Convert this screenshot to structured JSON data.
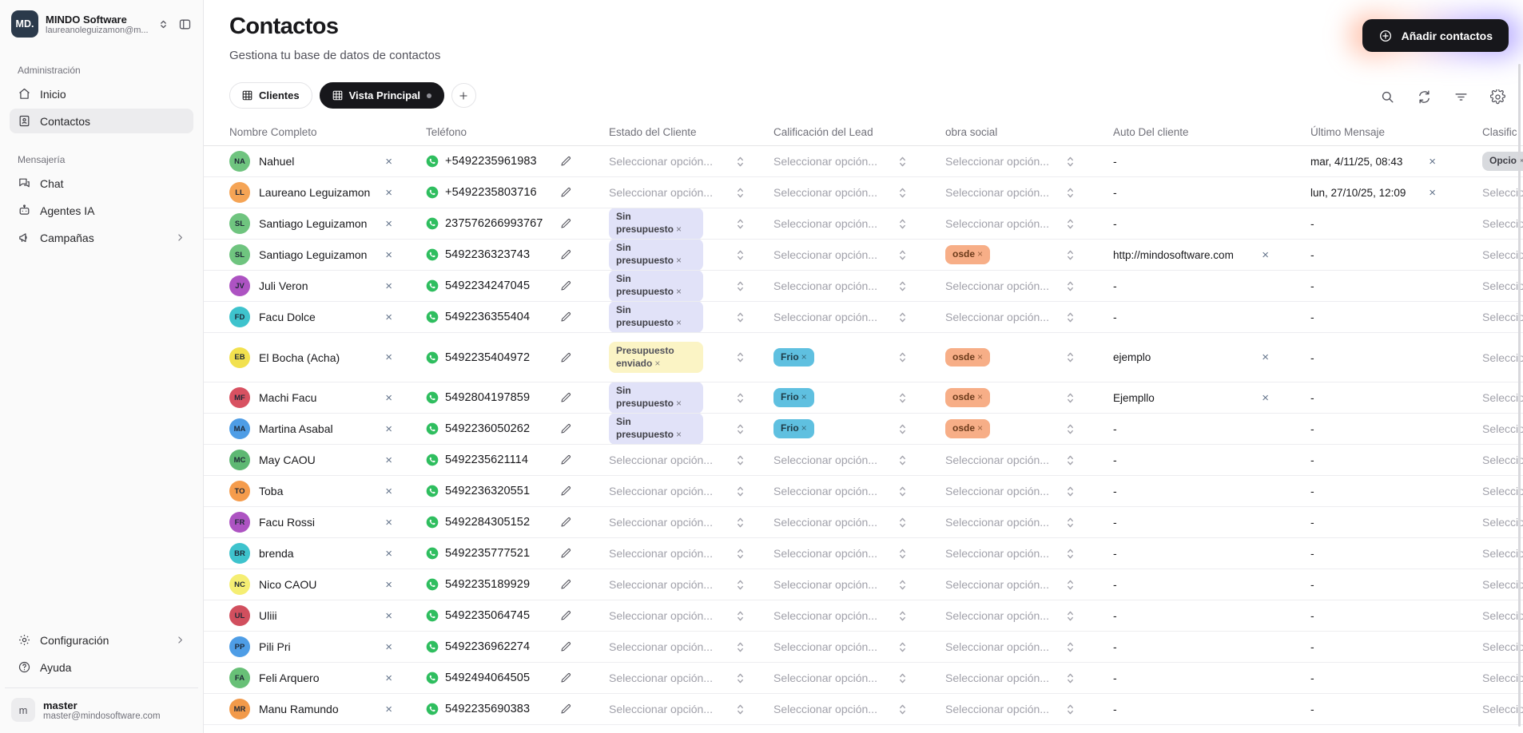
{
  "sidebar": {
    "workspace": {
      "logo": "MD.",
      "name": "MINDO Software",
      "email": "laureanoleguizamon@m..."
    },
    "sections": [
      {
        "label": "Administración",
        "items": [
          {
            "icon": "home-icon",
            "label": "Inicio",
            "active": false,
            "chevron": false
          },
          {
            "icon": "contacts-icon",
            "label": "Contactos",
            "active": true,
            "chevron": false
          }
        ]
      },
      {
        "label": "Mensajería",
        "items": [
          {
            "icon": "chat-icon",
            "label": "Chat",
            "active": false,
            "chevron": false
          },
          {
            "icon": "bot-icon",
            "label": "Agentes IA",
            "active": false,
            "chevron": false
          },
          {
            "icon": "megaphone-icon",
            "label": "Campañas",
            "active": false,
            "chevron": true
          }
        ]
      }
    ],
    "footer_items": [
      {
        "icon": "gear-icon",
        "label": "Configuración",
        "active": false,
        "chevron": true
      },
      {
        "icon": "help-icon",
        "label": "Ayuda",
        "active": false,
        "chevron": false
      }
    ],
    "account": {
      "avatar": "m",
      "name": "master",
      "email": "master@mindosoftware.com"
    }
  },
  "header": {
    "title": "Contactos",
    "subtitle": "Gestiona tu base de datos de contactos",
    "add_button": "Añadir contactos"
  },
  "tabs": [
    {
      "label": "Clientes",
      "active": false,
      "dot": false
    },
    {
      "label": "Vista Principal",
      "active": true,
      "dot": true
    }
  ],
  "toolbar_icons": [
    "search-icon",
    "refresh-icon",
    "filter-icon",
    "settings-icon"
  ],
  "table": {
    "columns": [
      "Nombre Completo",
      "Teléfono",
      "Estado del Cliente",
      "Calificación del Lead",
      "obra social",
      "Auto Del cliente",
      "Último Mensaje",
      "Clasific"
    ],
    "select_placeholder": "Seleccionar opción...",
    "empty_value": "-",
    "badges": {
      "sin_presupuesto": {
        "label": "Sin presupuesto",
        "bg": "#e1e2f8",
        "color": "#3f3f46"
      },
      "presupuesto_enviado": {
        "label": "Presupuesto enviado",
        "bg": "#fbf4c5",
        "color": "#52525b"
      },
      "frio": {
        "label": "Frio",
        "bg": "#5fc0e0",
        "color": "#1e3a45"
      },
      "osde": {
        "label": "osde",
        "bg": "#f7ae87",
        "color": "#6b3a1a"
      },
      "opcio": {
        "label": "Opcio",
        "bg": "#d8dade",
        "color": "#3f3f46"
      }
    },
    "rows": [
      {
        "initials": "NA",
        "color": "#6fc47f",
        "name": "Nahuel",
        "phone": "+5492235961983",
        "estado": null,
        "calificacion": null,
        "obra": null,
        "auto": null,
        "ultimo": {
          "text": "mar, 4/11/25, 08:43",
          "removable": true
        },
        "clasific": "badge",
        "tall": false
      },
      {
        "initials": "LL",
        "color": "#f5a455",
        "name": "Laureano Leguizamon",
        "phone": "+5492235803716",
        "estado": null,
        "calificacion": null,
        "obra": null,
        "auto": null,
        "ultimo": {
          "text": "lun, 27/10/25, 12:09",
          "removable": true
        },
        "clasific": "select",
        "tall": false
      },
      {
        "initials": "SL",
        "color": "#6fc47f",
        "name": "Santiago Leguizamon",
        "phone": "237576266993767",
        "estado": "sin_presupuesto",
        "calificacion": null,
        "obra": null,
        "auto": null,
        "ultimo": null,
        "clasific": "select",
        "tall": false
      },
      {
        "initials": "SL",
        "color": "#6fc47f",
        "name": "Santiago Leguizamon",
        "phone": "5492236323743",
        "estado": "sin_presupuesto",
        "calificacion": null,
        "obra": "osde",
        "auto": {
          "text": "http://mindosoftware.com",
          "removable": true
        },
        "ultimo": null,
        "clasific": "select",
        "tall": false
      },
      {
        "initials": "JV",
        "color": "#ad53c2",
        "name": "Juli Veron",
        "phone": "5492234247045",
        "estado": "sin_presupuesto",
        "calificacion": null,
        "obra": null,
        "auto": null,
        "ultimo": null,
        "clasific": "select",
        "tall": false
      },
      {
        "initials": "FD",
        "color": "#3ec3cd",
        "name": "Facu Dolce",
        "phone": "5492236355404",
        "estado": "sin_presupuesto",
        "calificacion": null,
        "obra": null,
        "auto": null,
        "ultimo": null,
        "clasific": "select",
        "tall": false
      },
      {
        "initials": "EB",
        "color": "#f2e14e",
        "name": "El Bocha (Acha)",
        "phone": "5492235404972",
        "estado": "presupuesto_enviado",
        "calificacion": "frio",
        "obra": "osde",
        "auto": {
          "text": "ejemplo",
          "removable": true
        },
        "ultimo": null,
        "clasific": "select",
        "tall": true
      },
      {
        "initials": "MF",
        "color": "#d85161",
        "name": "Machi Facu",
        "phone": "5492804197859",
        "estado": "sin_presupuesto",
        "calificacion": "frio",
        "obra": "osde",
        "auto": {
          "text": "Ejempllo",
          "removable": true
        },
        "ultimo": null,
        "clasific": "select",
        "tall": false
      },
      {
        "initials": "MA",
        "color": "#4e9de6",
        "name": "Martina Asabal",
        "phone": "5492236050262",
        "estado": "sin_presupuesto",
        "calificacion": "frio",
        "obra": "osde",
        "auto": null,
        "ultimo": null,
        "clasific": "select",
        "tall": false
      },
      {
        "initials": "MC",
        "color": "#5eb873",
        "name": "May CAOU",
        "phone": "5492235621114",
        "estado": null,
        "calificacion": null,
        "obra": null,
        "auto": null,
        "ultimo": null,
        "clasific": "select",
        "tall": false
      },
      {
        "initials": "TO",
        "color": "#f59c4c",
        "name": "Toba",
        "phone": "5492236320551",
        "estado": null,
        "calificacion": null,
        "obra": null,
        "auto": null,
        "ultimo": null,
        "clasific": "select",
        "tall": false
      },
      {
        "initials": "FR",
        "color": "#ad53c2",
        "name": "Facu Rossi",
        "phone": "5492284305152",
        "estado": null,
        "calificacion": null,
        "obra": null,
        "auto": null,
        "ultimo": null,
        "clasific": "select",
        "tall": false
      },
      {
        "initials": "BR",
        "color": "#3ec3cd",
        "name": "brenda",
        "phone": "5492235777521",
        "estado": null,
        "calificacion": null,
        "obra": null,
        "auto": null,
        "ultimo": null,
        "clasific": "select",
        "tall": false
      },
      {
        "initials": "NC",
        "color": "#f5ee73",
        "name": "Nico CAOU",
        "phone": "5492235189929",
        "estado": null,
        "calificacion": null,
        "obra": null,
        "auto": null,
        "ultimo": null,
        "clasific": "select",
        "tall": false
      },
      {
        "initials": "UL",
        "color": "#d14f5e",
        "name": "Uliii",
        "phone": "5492235064745",
        "estado": null,
        "calificacion": null,
        "obra": null,
        "auto": null,
        "ultimo": null,
        "clasific": "select",
        "tall": false
      },
      {
        "initials": "PP",
        "color": "#4e9de6",
        "name": "Pili Pri",
        "phone": "5492236962274",
        "estado": null,
        "calificacion": null,
        "obra": null,
        "auto": null,
        "ultimo": null,
        "clasific": "select",
        "tall": false
      },
      {
        "initials": "FA",
        "color": "#68c077",
        "name": "Feli Arquero",
        "phone": "5492494064505",
        "estado": null,
        "calificacion": null,
        "obra": null,
        "auto": null,
        "ultimo": null,
        "clasific": "select",
        "tall": false
      },
      {
        "initials": "MR",
        "color": "#f29a4a",
        "name": "Manu Ramundo",
        "phone": "5492235690383",
        "estado": null,
        "calificacion": null,
        "obra": null,
        "auto": null,
        "ultimo": null,
        "clasific": "select",
        "tall": false
      }
    ],
    "partial_row_color": "#b953c2"
  }
}
